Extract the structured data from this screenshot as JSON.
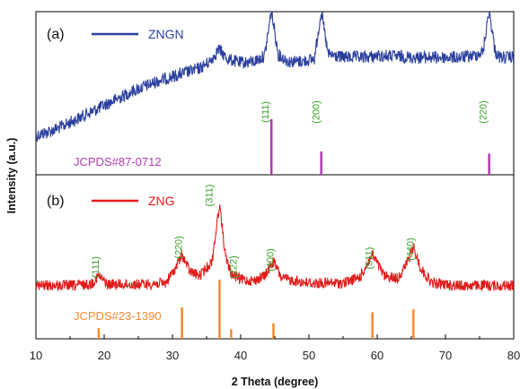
{
  "chart_data": {
    "type": "line",
    "xlabel": "2 Theta (degree)",
    "ylabel": "Intensity (a.u.)",
    "xlim": [
      10,
      80
    ],
    "x_ticks": [
      "10",
      "20",
      "30",
      "40",
      "50",
      "60",
      "70",
      "80"
    ],
    "panels": [
      {
        "label": "(a)",
        "series": [
          {
            "name": "ZNGN",
            "color": "#2b3f9e",
            "x": [
              10,
              12,
              14,
              16,
              18,
              20,
              22,
              24,
              26,
              28,
              30,
              32,
              34,
              35.5,
              36.8,
              38,
              40,
              42,
              43.5,
              44.5,
              45.5,
              47,
              49,
              50.8,
              51.8,
              52.8,
              55,
              58,
              60,
              62,
              65,
              68,
              70,
              72,
              74,
              75.5,
              76.4,
              77.3,
              78,
              80
            ],
            "y": [
              0.09,
              0.12,
              0.16,
              0.21,
              0.26,
              0.31,
              0.36,
              0.41,
              0.45,
              0.49,
              0.52,
              0.55,
              0.58,
              0.63,
              0.72,
              0.65,
              0.62,
              0.63,
              0.67,
              1.0,
              0.68,
              0.63,
              0.63,
              0.65,
              1.0,
              0.68,
              0.66,
              0.66,
              0.67,
              0.67,
              0.66,
              0.66,
              0.66,
              0.66,
              0.67,
              0.7,
              1.0,
              0.7,
              0.66,
              0.66
            ]
          }
        ],
        "reference": {
          "label": "JCPDS#87-0712",
          "color": "#b03ab0",
          "lines": [
            {
              "x": 44.5,
              "h": 1.0
            },
            {
              "x": 51.8,
              "h": 0.42
            },
            {
              "x": 76.4,
              "h": 0.38
            }
          ]
        },
        "hkl": [
          {
            "x": 44.5,
            "text": "(111)"
          },
          {
            "x": 51.8,
            "text": "(200)"
          },
          {
            "x": 76.4,
            "text": "(220)"
          }
        ]
      },
      {
        "label": "(b)",
        "series": [
          {
            "name": "ZNG",
            "color": "#e21b1b",
            "x": [
              10,
              15,
              18,
              19.2,
              20.5,
              25,
              29,
              30.5,
              31.4,
              32.5,
              34,
              35.8,
              36.9,
              37.8,
              38.6,
              40,
              42,
              43.5,
              44.8,
              46,
              50,
              55,
              57.5,
              59.3,
              61,
              63,
              64.3,
              65.3,
              66.4,
              68,
              72,
              76,
              80
            ],
            "y": [
              0.1,
              0.1,
              0.11,
              0.18,
              0.11,
              0.11,
              0.12,
              0.25,
              0.36,
              0.22,
              0.18,
              0.3,
              0.78,
              0.33,
              0.2,
              0.15,
              0.14,
              0.18,
              0.3,
              0.16,
              0.12,
              0.12,
              0.17,
              0.36,
              0.18,
              0.16,
              0.28,
              0.42,
              0.24,
              0.12,
              0.1,
              0.1,
              0.1
            ]
          }
        ],
        "reference": {
          "label": "JCPDS#23-1390",
          "color": "#f28a2e",
          "lines": [
            {
              "x": 19.2,
              "h": 0.18
            },
            {
              "x": 31.4,
              "h": 0.53
            },
            {
              "x": 36.9,
              "h": 1.0
            },
            {
              "x": 38.6,
              "h": 0.16
            },
            {
              "x": 44.8,
              "h": 0.26
            },
            {
              "x": 59.3,
              "h": 0.45
            },
            {
              "x": 65.3,
              "h": 0.5
            }
          ]
        },
        "hkl": [
          {
            "x": 19.2,
            "text": "(111)"
          },
          {
            "x": 31.4,
            "text": "(220)"
          },
          {
            "x": 36.9,
            "text": "(311)"
          },
          {
            "x": 38.6,
            "text": "(222)"
          },
          {
            "x": 44.8,
            "text": "(400)"
          },
          {
            "x": 59.3,
            "text": "(511)"
          },
          {
            "x": 65.3,
            "text": "(440)"
          }
        ]
      }
    ]
  }
}
